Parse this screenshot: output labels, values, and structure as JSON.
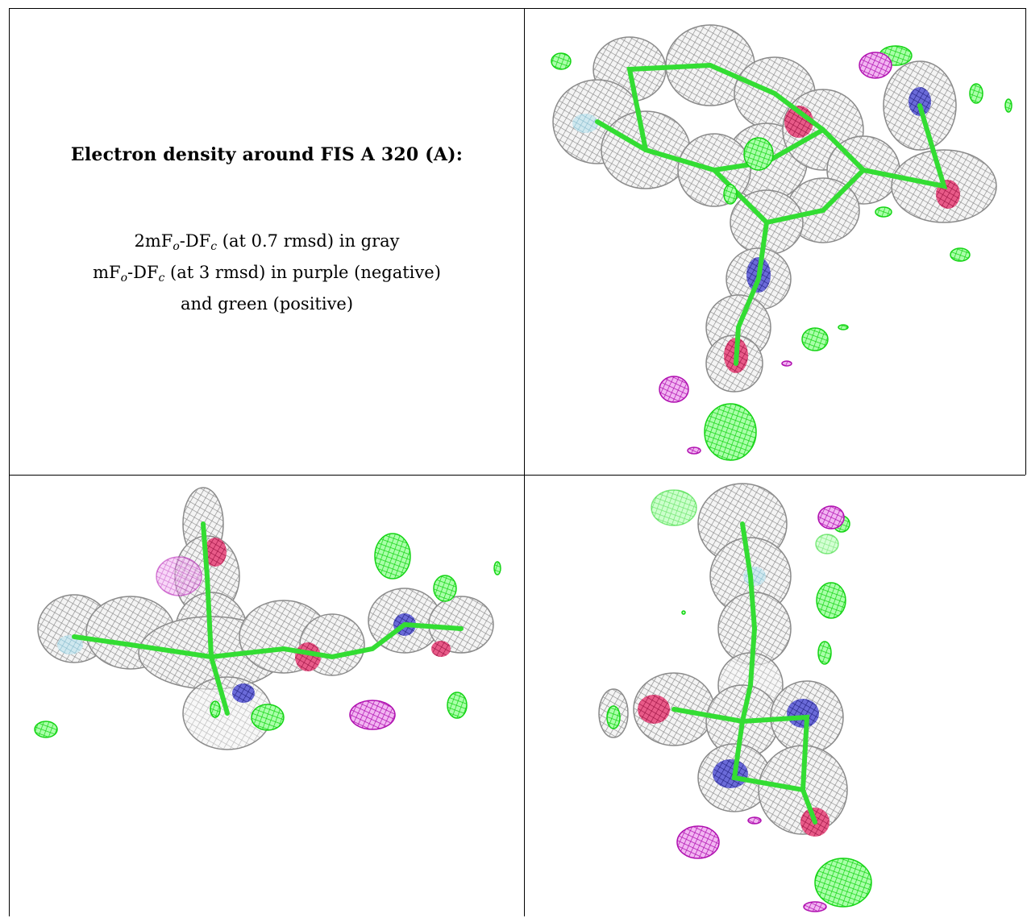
{
  "caption": {
    "title": "Electron density around FIS A 320 (A):",
    "line1": {
      "pre": "2mF",
      "o": "o",
      "mid": "-DF",
      "c": "c",
      "post": " (at 0.7 rmsd) in gray"
    },
    "line2": {
      "pre": "mF",
      "o": "o",
      "mid": "-DF",
      "c": "c",
      "post": " (at 3 rmsd) in purple (negative)"
    },
    "line3": "and green (positive)"
  },
  "colors": {
    "density_2fofc": "#9a9a9a",
    "density_fofc_positive": "#22dd22",
    "density_fofc_negative": "#c010c0",
    "atom_oxygen": "#d4205a",
    "atom_nitrogen": "#3030b0",
    "atom_sulfur": "#88bbcc",
    "bond": "#33dd33"
  }
}
